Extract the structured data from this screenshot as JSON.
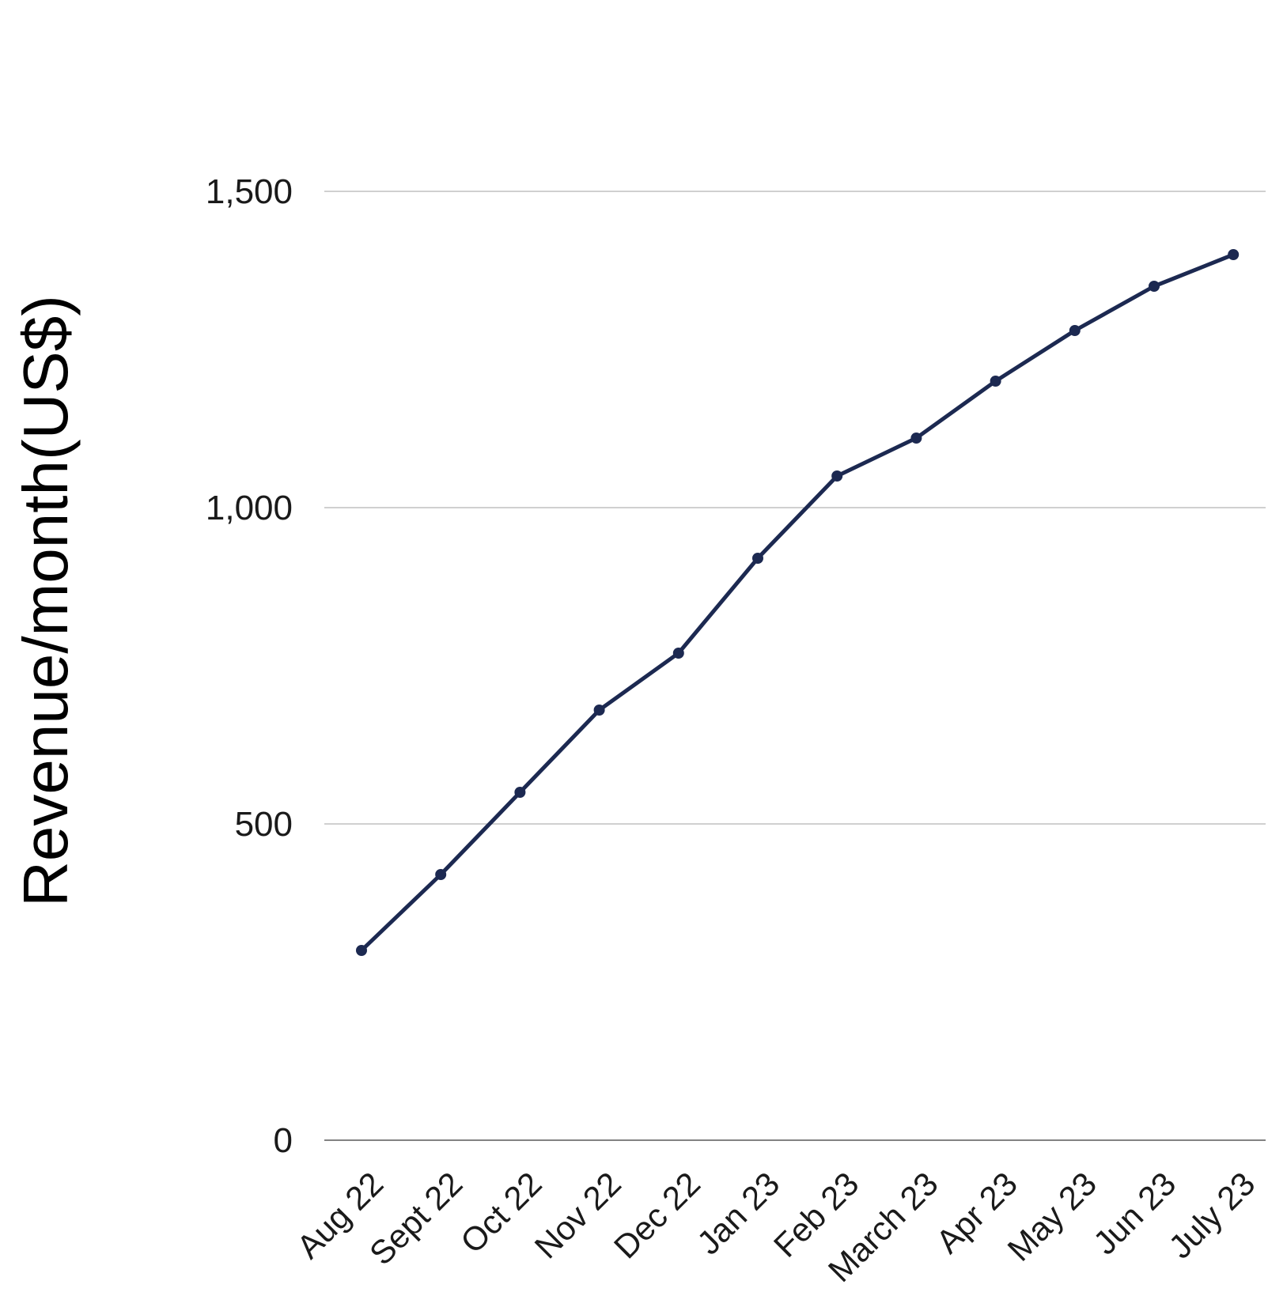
{
  "chart_data": {
    "type": "line",
    "title": "",
    "xlabel": "",
    "ylabel": "Revenue/month(US$)",
    "categories": [
      "Aug 22",
      "Sept 22",
      "Oct 22",
      "Nov 22",
      "Dec 22",
      "Jan 23",
      "Feb 23",
      "March 23",
      "Apr 23",
      "May 23",
      "Jun 23",
      "July 23"
    ],
    "series": [
      {
        "values": [
          300,
          420,
          550,
          680,
          770,
          920,
          1050,
          1110,
          1200,
          1280,
          1350,
          1400
        ]
      }
    ],
    "ylim": [
      0,
      1500
    ],
    "yticks": [
      0,
      500,
      1000,
      1500
    ],
    "ytick_labels": [
      "0",
      "500",
      "1,000",
      "1,500"
    ],
    "grid": true,
    "legend": "none",
    "colors": {
      "line": "#1c2951",
      "grid": "#b3b3b3",
      "baseline": "#595959"
    }
  }
}
